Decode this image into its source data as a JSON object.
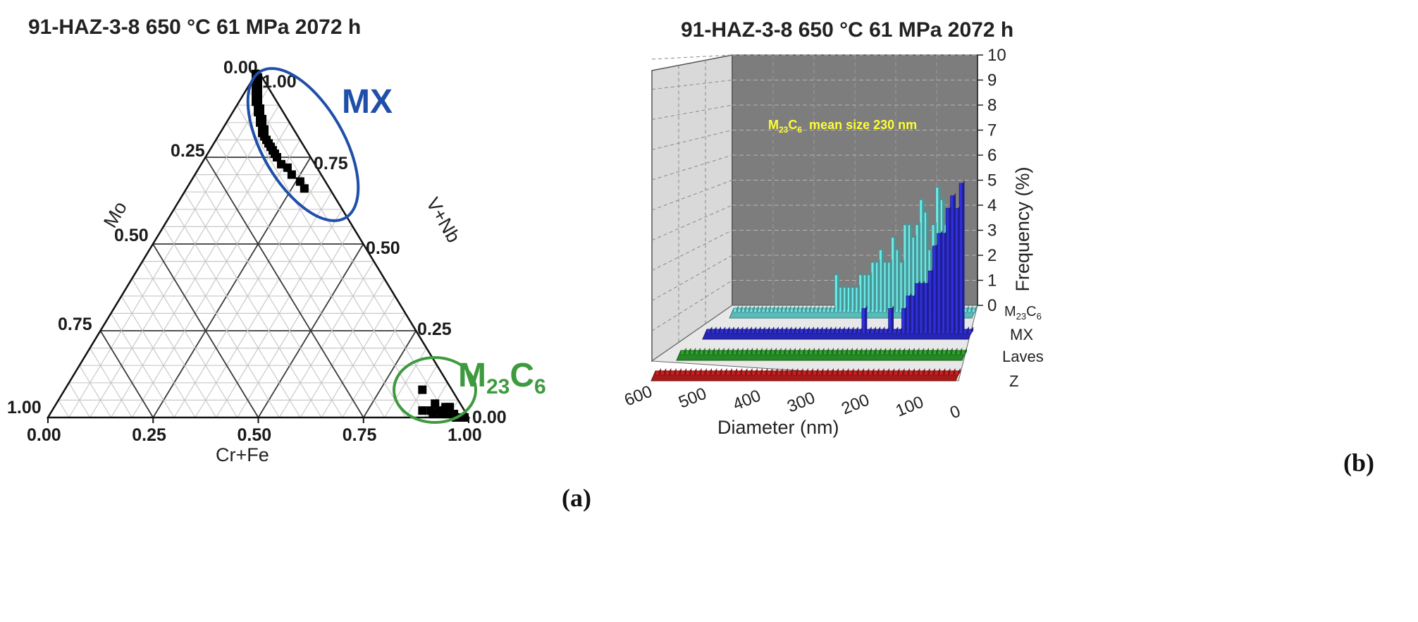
{
  "panel_a": {
    "label": "(a)"
  },
  "panel_b": {
    "label": "(b)"
  },
  "chart_data": [
    {
      "type": "ternary",
      "title": "91-HAZ-3-8 650 °C 61 MPa 2072 h",
      "axes": {
        "bottom": "Cr+Fe",
        "left": "Mo",
        "right": "V+Nb"
      },
      "bottom_ticks": [
        "0.00",
        "0.25",
        "0.50",
        "0.75",
        "1.00"
      ],
      "left_ticks": [
        "0.00",
        "0.25",
        "0.50",
        "0.75",
        "1.00"
      ],
      "right_ticks": [
        "0.00",
        "0.25",
        "0.50",
        "0.75",
        "1.00"
      ],
      "clusters": [
        {
          "name": "MX",
          "color": "#1f4fa8",
          "points": [
            [
              0.0,
              0.99
            ],
            [
              0.01,
              0.98
            ],
            [
              0.01,
              0.97
            ],
            [
              0.02,
              0.96
            ],
            [
              0.02,
              0.95
            ],
            [
              0.03,
              0.94
            ],
            [
              0.03,
              0.93
            ],
            [
              0.04,
              0.92
            ],
            [
              0.04,
              0.91
            ],
            [
              0.05,
              0.9
            ],
            [
              0.06,
              0.89
            ],
            [
              0.06,
              0.88
            ],
            [
              0.07,
              0.87
            ],
            [
              0.08,
              0.86
            ],
            [
              0.08,
              0.85
            ],
            [
              0.09,
              0.84
            ],
            [
              0.1,
              0.83
            ],
            [
              0.1,
              0.82
            ],
            [
              0.11,
              0.81
            ],
            [
              0.12,
              0.8
            ],
            [
              0.13,
              0.79
            ],
            [
              0.14,
              0.78
            ],
            [
              0.15,
              0.77
            ],
            [
              0.16,
              0.76
            ],
            [
              0.17,
              0.75
            ],
            [
              0.19,
              0.73
            ],
            [
              0.21,
              0.72
            ],
            [
              0.23,
              0.7
            ],
            [
              0.26,
              0.68
            ],
            [
              0.28,
              0.66
            ]
          ]
        },
        {
          "name": "M23C6",
          "color": "#3e9a3e",
          "points": [
            [
              0.85,
              0.08
            ],
            [
              0.88,
              0.02
            ],
            [
              0.9,
              0.02
            ],
            [
              0.91,
              0.01
            ],
            [
              0.92,
              0.02
            ],
            [
              0.93,
              0.01
            ],
            [
              0.93,
              0.03
            ],
            [
              0.94,
              0.01
            ],
            [
              0.95,
              0.01
            ],
            [
              0.96,
              0.01
            ],
            [
              0.97,
              0.0
            ],
            [
              0.98,
              0.0
            ],
            [
              0.9,
              0.04
            ],
            [
              0.94,
              0.03
            ],
            [
              0.99,
              0.0
            ]
          ]
        }
      ],
      "labels": {
        "mx": "MX",
        "m23c6": "M",
        "m23c6_sub1": "23",
        "m23c6_c": "C",
        "m23c6_sub2": "6"
      }
    },
    {
      "type": "bar3d",
      "title": "91-HAZ-3-8 650 °C 61 MPa 2072 h",
      "xlabel": "Diameter (nm)",
      "ylabel": "Frequency (%)",
      "x_ticks": [
        "600",
        "500",
        "400",
        "300",
        "200",
        "100",
        "0"
      ],
      "y_ticks": [
        "0",
        "1",
        "2",
        "3",
        "4",
        "5",
        "6",
        "7",
        "8",
        "9",
        "10"
      ],
      "ylim": [
        0,
        10
      ],
      "bin_width_nm": 10,
      "annotation": {
        "prefix": "M",
        "sub1": "23",
        "mid": "C",
        "sub2": "6",
        "rest": "  mean size 230 nm"
      },
      "series": [
        {
          "name": "M23C6",
          "label_main": "M",
          "label_sub1": "23",
          "label_c": "C",
          "label_sub2": "6",
          "color": "#6fe8e8",
          "values": [
            0,
            0,
            0,
            0,
            0,
            4,
            4,
            3.5,
            4.5,
            5,
            3.5,
            2.5,
            4,
            4.5,
            3.5,
            3,
            3.5,
            3.5,
            2,
            2.5,
            3,
            2,
            2,
            2.5,
            2,
            2,
            1.5,
            1.5,
            1.5,
            1,
            1,
            1,
            1,
            1,
            1.5,
            0,
            0,
            0,
            0,
            0,
            0,
            0,
            0,
            0,
            0,
            0,
            0,
            0,
            0,
            0,
            0,
            0,
            0,
            0,
            0,
            0,
            0,
            0,
            0,
            0
          ]
        },
        {
          "name": "MX",
          "label": "MX",
          "color": "#3030e0",
          "values": [
            0,
            0,
            6,
            5,
            5.5,
            5,
            4,
            4,
            3.5,
            2.5,
            2,
            2,
            2,
            1.5,
            1.5,
            1,
            0,
            0,
            1,
            0,
            0,
            0,
            0,
            0,
            1,
            0,
            0,
            0,
            0,
            0,
            0,
            0,
            0,
            0,
            0,
            0,
            0,
            0,
            0,
            0,
            0,
            0,
            0,
            0,
            0,
            0,
            0,
            0,
            0,
            0,
            0,
            0,
            0,
            0,
            0,
            0,
            0,
            0,
            0,
            0
          ]
        },
        {
          "name": "Laves",
          "label": "Laves",
          "color": "#2eaa2e",
          "values": [
            0,
            0,
            0,
            0,
            0,
            0,
            0,
            0,
            0,
            0,
            0,
            0,
            0,
            0,
            0,
            0,
            0,
            0,
            0,
            0,
            0,
            0,
            0,
            0,
            0,
            0,
            0,
            0,
            0,
            0,
            0,
            0,
            0,
            0,
            0,
            0,
            0,
            0,
            0,
            0,
            0,
            0,
            0,
            0,
            0,
            0,
            0,
            0,
            0,
            0,
            0,
            0,
            0,
            0,
            0,
            0,
            0,
            0,
            0,
            0
          ]
        },
        {
          "name": "Z",
          "label": "Z",
          "color": "#d02020",
          "values": [
            0,
            0,
            0,
            0,
            0,
            0,
            0,
            0,
            0,
            0,
            0,
            0,
            0,
            0,
            0,
            0,
            0,
            0,
            0,
            0,
            0,
            0,
            0,
            0,
            0,
            0,
            0,
            0,
            0,
            0,
            0,
            0,
            0,
            0,
            0,
            0,
            0,
            0,
            0,
            0,
            0,
            0,
            0,
            0,
            0,
            0,
            0,
            0,
            0,
            0,
            0,
            0,
            0,
            0,
            0,
            0,
            0,
            0,
            0,
            0
          ]
        }
      ]
    }
  ]
}
